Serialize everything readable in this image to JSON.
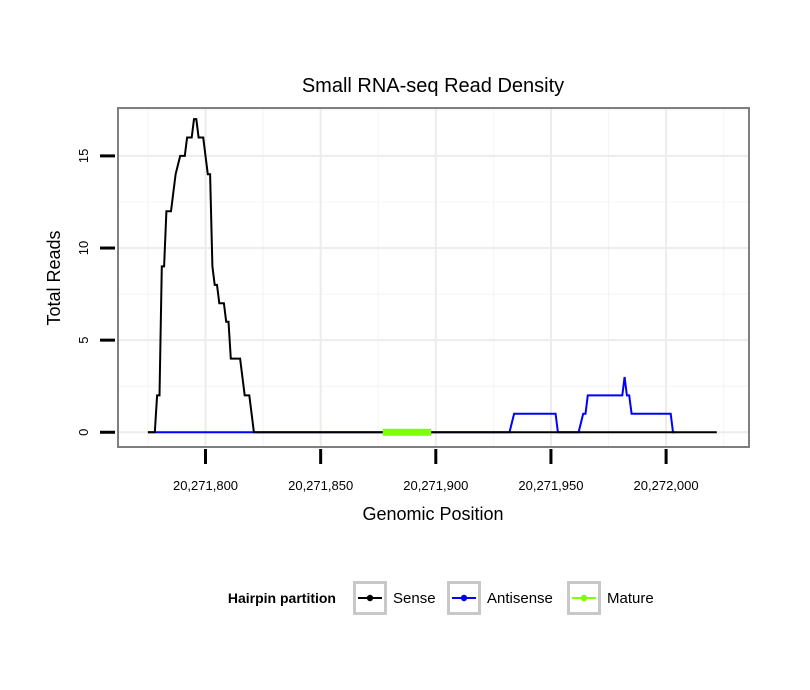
{
  "chart_data": {
    "type": "line",
    "title": "Small RNA-seq Read Density",
    "xlabel": "Genomic Position",
    "ylabel": "Total Reads",
    "xlim": [
      20271762,
      20272036
    ],
    "ylim": [
      -0.8,
      17.6
    ],
    "x_ticks": [
      20271800,
      20271850,
      20271900,
      20271950,
      20272000
    ],
    "x_tick_labels": [
      "20,271,800",
      "20,271,850",
      "20,271,900",
      "20,271,950",
      "20,272,000"
    ],
    "y_ticks": [
      0,
      5,
      10,
      15
    ],
    "y_tick_labels": [
      "0",
      "5",
      "10",
      "15"
    ],
    "grid": true,
    "legend": {
      "title": "Hairpin partition",
      "position": "bottom",
      "entries": [
        "Sense",
        "Antisense",
        "Mature"
      ]
    },
    "series": [
      {
        "name": "Sense",
        "color": "#000000",
        "x": [
          20271775,
          20271778,
          20271779,
          20271780,
          20271781,
          20271782,
          20271783,
          20271785,
          20271786,
          20271787,
          20271789,
          20271790,
          20271791,
          20271792,
          20271793,
          20271794,
          20271795,
          20271796,
          20271797,
          20271798,
          20271799,
          20271800,
          20271801,
          20271802,
          20271803,
          20271804,
          20271805,
          20271806,
          20271807,
          20271808,
          20271809,
          20271810,
          20271811,
          20271812,
          20271815,
          20271816,
          20271817,
          20271819,
          20271820,
          20271821,
          20271822,
          20271900,
          20271950,
          20272000,
          20272022
        ],
        "y": [
          0,
          0,
          2,
          2,
          9,
          9,
          12,
          12,
          13,
          14,
          15,
          15,
          15,
          16,
          16,
          16,
          17,
          17,
          16,
          16,
          16,
          15,
          14,
          14,
          9,
          8,
          8,
          7,
          7,
          7,
          6,
          6,
          4,
          4,
          4,
          3,
          2,
          2,
          1,
          0,
          0,
          0,
          0,
          0,
          0
        ]
      },
      {
        "name": "Antisense",
        "color": "#0000ff",
        "x": [
          20271775,
          20271820,
          20271932,
          20271933,
          20271934,
          20271950,
          20271952,
          20271953,
          20271960,
          20271962,
          20271963,
          20271964,
          20271965,
          20271966,
          20271980,
          20271981,
          20271982,
          20271983,
          20271984,
          20271985,
          20271986,
          20272000,
          20272002,
          20272003,
          20272004
        ],
        "y": [
          0,
          0,
          0,
          0.5,
          1,
          1,
          1,
          0,
          0,
          0,
          0.5,
          1,
          1,
          2,
          2,
          2,
          3,
          2,
          2,
          1,
          1,
          1,
          1,
          0,
          0
        ]
      },
      {
        "name": "Mature",
        "color": "#7fff00",
        "x": [
          20271877,
          20271898
        ],
        "y": [
          0,
          0
        ]
      }
    ]
  }
}
